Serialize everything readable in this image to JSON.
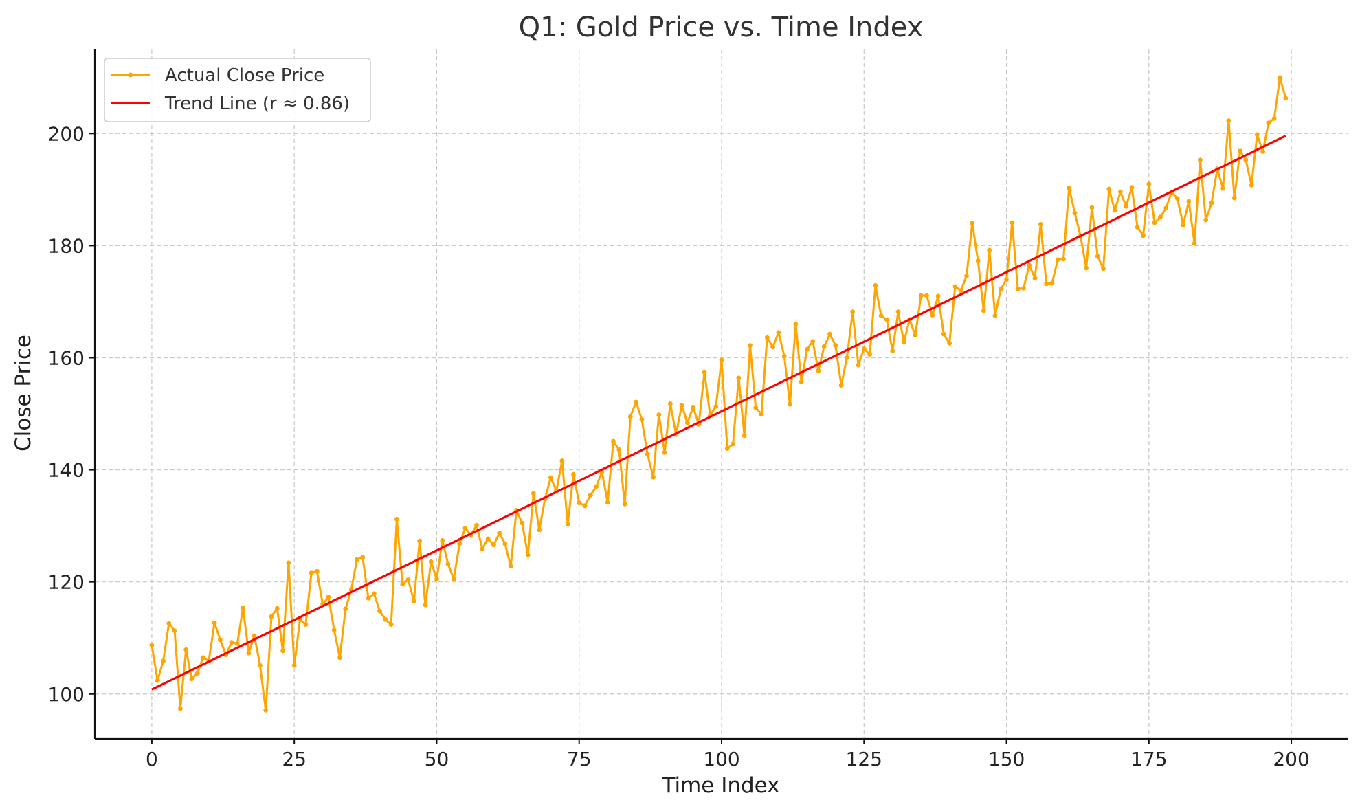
{
  "chart_data": {
    "type": "line",
    "title": "Q1: Gold Price vs. Time Index",
    "xlabel": "Time Index",
    "ylabel": "Close Price",
    "xlim": [
      -10,
      210
    ],
    "ylim": [
      92,
      215
    ],
    "xticks": [
      0,
      25,
      50,
      75,
      100,
      125,
      150,
      175,
      200
    ],
    "yticks": [
      100,
      120,
      140,
      160,
      180,
      200
    ],
    "grid": true,
    "legend_position": "top-left",
    "colors": {
      "actual": "#FFA500",
      "trend": "#FF0000",
      "grid": "#c8c8c8",
      "axis": "#111111"
    },
    "series": [
      {
        "name": "Actual Close Price",
        "style": "line-with-markers",
        "x_start": 0,
        "x_step": 1,
        "values": [
          108.7,
          102.4,
          105.9,
          112.6,
          111.3,
          97.4,
          107.9,
          102.7,
          103.7,
          106.5,
          105.9,
          112.7,
          109.7,
          107.0,
          109.2,
          109.0,
          115.4,
          107.3,
          110.4,
          105.1,
          97.1,
          113.8,
          115.3,
          107.7,
          123.4,
          105.1,
          113.3,
          112.4,
          121.6,
          121.9,
          116.0,
          117.3,
          111.4,
          106.5,
          115.2,
          118.6,
          124.0,
          124.4,
          117.1,
          117.9,
          114.8,
          113.3,
          112.4,
          131.2,
          119.6,
          120.4,
          116.6,
          127.3,
          115.9,
          123.6,
          120.5,
          127.4,
          123.2,
          120.5,
          126.8,
          129.6,
          128.4,
          130.1,
          125.9,
          127.7,
          126.6,
          128.7,
          126.8,
          122.8,
          132.8,
          130.5,
          124.8,
          135.8,
          129.3,
          134.8,
          138.6,
          136.3,
          141.6,
          130.3,
          139.2,
          134.1,
          133.6,
          135.5,
          137.0,
          139.6,
          134.2,
          145.1,
          143.6,
          133.9,
          149.5,
          152.1,
          149.0,
          142.8,
          138.7,
          149.8,
          143.1,
          151.8,
          146.3,
          151.5,
          148.4,
          151.2,
          148.1,
          157.4,
          149.7,
          151.3,
          159.6,
          143.8,
          144.6,
          156.4,
          146.1,
          162.2,
          151.1,
          149.9,
          163.6,
          161.9,
          164.5,
          160.3,
          151.7,
          166.0,
          155.7,
          161.5,
          162.9,
          157.7,
          162.0,
          164.2,
          162.2,
          155.1,
          160.0,
          168.2,
          158.7,
          161.6,
          160.6,
          172.9,
          167.5,
          166.8,
          161.2,
          168.2,
          162.8,
          166.8,
          164.0,
          171.1,
          171.1,
          167.6,
          171.0,
          164.2,
          162.6,
          172.7,
          172.0,
          174.6,
          184.0,
          177.3,
          168.4,
          179.2,
          167.5,
          172.3,
          173.9,
          184.1,
          172.3,
          172.4,
          176.5,
          174.2,
          183.8,
          173.2,
          173.3,
          177.5,
          177.6,
          190.3,
          185.8,
          181.7,
          176.0,
          186.8,
          178.1,
          175.9,
          190.1,
          186.3,
          189.6,
          187.0,
          190.4,
          183.3,
          181.8,
          191.0,
          184.1,
          185.1,
          186.7,
          189.6,
          188.4,
          183.7,
          187.9,
          180.4,
          195.3,
          184.6,
          187.6,
          193.7,
          190.2,
          202.3,
          188.5,
          196.9,
          195.3,
          190.8,
          199.8,
          196.8,
          201.9,
          202.7,
          210.0,
          206.3
        ]
      },
      {
        "name": "Trend Line (r ≈ 0.86)",
        "style": "line",
        "x": [
          0,
          199
        ],
        "values": [
          100.8,
          199.6
        ]
      }
    ]
  }
}
